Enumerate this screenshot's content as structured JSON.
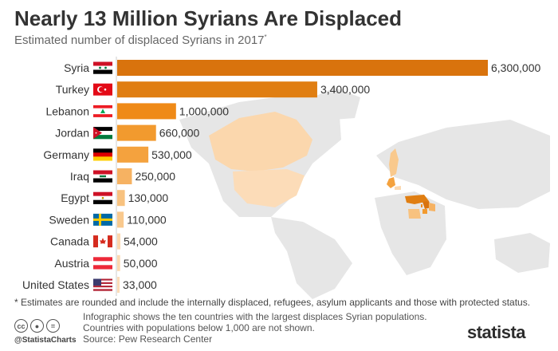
{
  "header": {
    "title": "Nearly 13 Million Syrians Are Displaced",
    "subtitle": "Estimated number of displaced Syrians in 2017",
    "subtitle_marker": "*"
  },
  "chart_data": {
    "type": "bar",
    "orientation": "horizontal",
    "categories": [
      "Syria",
      "Turkey",
      "Lebanon",
      "Jordan",
      "Germany",
      "Iraq",
      "Egypt",
      "Sweden",
      "Canada",
      "Austria",
      "United States"
    ],
    "values": [
      6300000,
      3400000,
      1000000,
      660000,
      530000,
      250000,
      130000,
      110000,
      54000,
      50000,
      33000
    ],
    "value_labels": [
      "6,300,000",
      "3,400,000",
      "1,000,000",
      "660,000",
      "530,000",
      "250,000",
      "130,000",
      "110,000",
      "54,000",
      "50,000",
      "33,000"
    ],
    "flags": [
      "syria-flag",
      "turkey-flag",
      "lebanon-flag",
      "jordan-flag",
      "germany-flag",
      "iraq-flag",
      "egypt-flag",
      "sweden-flag",
      "canada-flag",
      "austria-flag",
      "usa-flag"
    ],
    "bar_colors": [
      "#d9730d",
      "#e07e12",
      "#ef8a17",
      "#f29a2e",
      "#f4a23e",
      "#f6b262",
      "#f8c27f",
      "#f9c98d",
      "#fbd7ad",
      "#fbd9b1",
      "#fcdcb8"
    ],
    "xlim": [
      0,
      6300000
    ],
    "grid": false
  },
  "footnote": "* Estimates are rounded and include the internally displaced, refugees, asylum applicants and those with protected status.",
  "footer": {
    "note_line1": "Infographic shows the ten countries with the largest displaces Syrian populations.",
    "note_line2": "Countries with populations below 1,000 are not shown.",
    "source": "Source: Pew Research Center",
    "handle": "@StatistaCharts",
    "brand": "statista",
    "license_icons": [
      "cc-icon",
      "attribution-icon",
      "no-derivatives-icon"
    ]
  }
}
